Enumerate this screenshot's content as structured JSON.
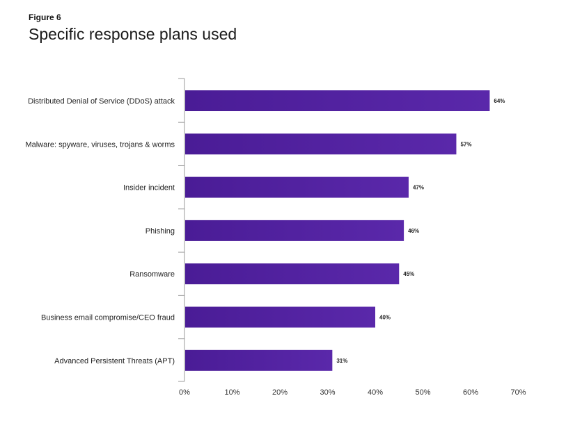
{
  "figure": {
    "label": "Figure 6",
    "title": "Specific response plans used"
  },
  "colors": {
    "bar": "#4a1c96",
    "bar_light": "#5a28aa",
    "axis": "#999999"
  },
  "chart_data": {
    "type": "bar",
    "orientation": "horizontal",
    "title": "Specific response plans used",
    "xlabel": "",
    "ylabel": "",
    "xlim": [
      0,
      70
    ],
    "ticks": [
      0,
      10,
      20,
      30,
      40,
      50,
      60,
      70
    ],
    "tick_labels": [
      "0%",
      "10%",
      "20%",
      "30%",
      "40%",
      "50%",
      "60%",
      "70%"
    ],
    "grid": false,
    "categories": [
      "Distributed Denial of Service (DDoS) attack",
      "Malware: spyware, viruses, trojans & worms",
      "Insider incident",
      "Phishing",
      "Ransomware",
      "Business email compromise/CEO fraud",
      "Advanced Persistent Threats (APT)"
    ],
    "values": [
      64,
      57,
      47,
      46,
      45,
      40,
      31
    ],
    "value_labels": [
      "64%",
      "57%",
      "47%",
      "46%",
      "45%",
      "40%",
      "31%"
    ]
  }
}
